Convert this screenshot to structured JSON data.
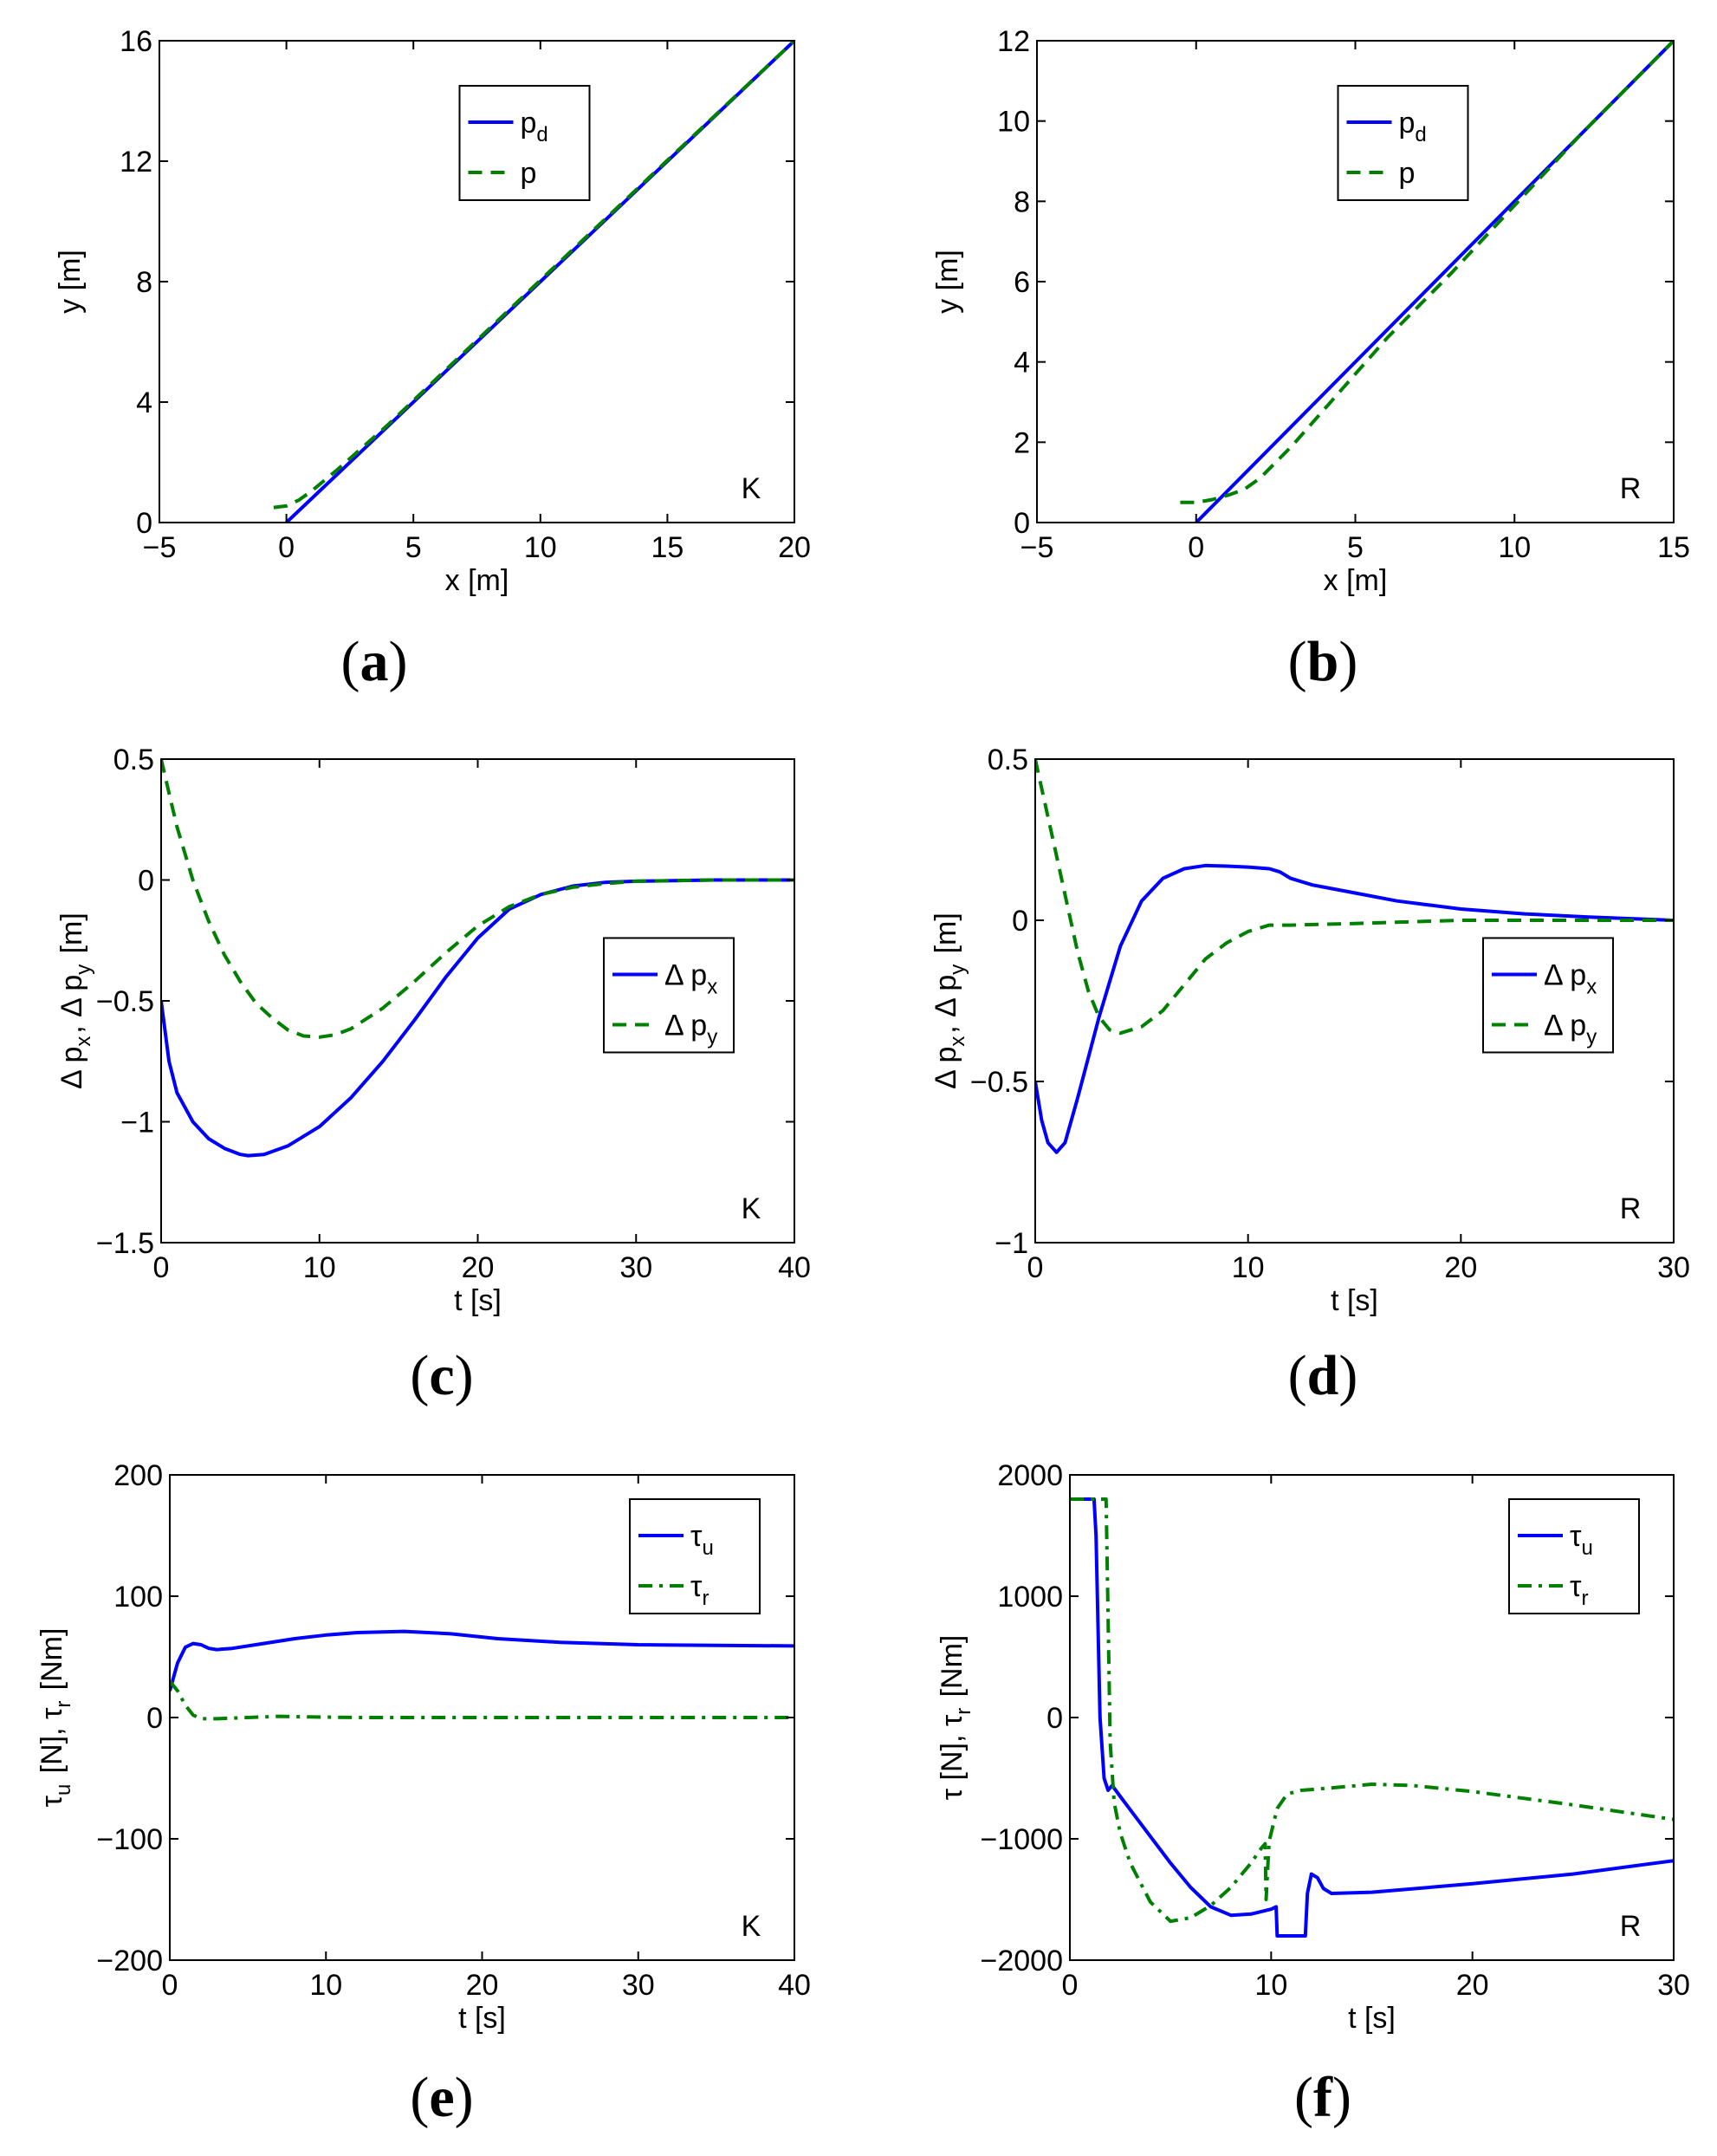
{
  "colors": {
    "blue": "#0000ff",
    "green": "#008000",
    "axis": "#000000"
  },
  "chart_data": [
    {
      "id": "a",
      "type": "line",
      "caption": "a",
      "corner_label": "K",
      "xlabel": "x [m]",
      "ylabel": "y [m]",
      "xlim": [
        -5,
        20
      ],
      "ylim": [
        0,
        16
      ],
      "xticks": [
        -5,
        0,
        5,
        10,
        15,
        20
      ],
      "yticks": [
        0,
        4,
        8,
        12,
        16
      ],
      "legend": {
        "position": "top-center"
      },
      "series": [
        {
          "name": "p",
          "sub": "d",
          "style": "solid",
          "color": "blue",
          "points": [
            [
              0,
              0
            ],
            [
              20,
              16
            ]
          ]
        },
        {
          "name": "p",
          "sub": "",
          "style": "dashed",
          "color": "green",
          "points": [
            [
              -0.5,
              0.5
            ],
            [
              0,
              0.55
            ],
            [
              0.5,
              0.75
            ],
            [
              1,
              1.05
            ],
            [
              2,
              1.75
            ],
            [
              3,
              2.5
            ],
            [
              4,
              3.25
            ],
            [
              5,
              4.05
            ],
            [
              7,
              5.65
            ],
            [
              10,
              8.05
            ],
            [
              15,
              12.03
            ],
            [
              20,
              16
            ]
          ]
        }
      ]
    },
    {
      "id": "b",
      "type": "line",
      "caption": "b",
      "corner_label": "R",
      "xlabel": "x [m]",
      "ylabel": "y [m]",
      "xlim": [
        -5,
        15
      ],
      "ylim": [
        0,
        12
      ],
      "xticks": [
        -5,
        0,
        5,
        10,
        15
      ],
      "yticks": [
        0,
        2,
        4,
        6,
        8,
        10,
        12
      ],
      "legend": {
        "position": "top-center"
      },
      "series": [
        {
          "name": "p",
          "sub": "d",
          "style": "solid",
          "color": "blue",
          "points": [
            [
              0,
              0
            ],
            [
              15,
              12
            ]
          ]
        },
        {
          "name": "p",
          "sub": "",
          "style": "dashed",
          "color": "green",
          "points": [
            [
              -0.5,
              0.5
            ],
            [
              0,
              0.5
            ],
            [
              0.5,
              0.57
            ],
            [
              1,
              0.68
            ],
            [
              1.5,
              0.82
            ],
            [
              2,
              1.1
            ],
            [
              3,
              1.9
            ],
            [
              4,
              2.8
            ],
            [
              5,
              3.7
            ],
            [
              6,
              4.6
            ],
            [
              7,
              5.4
            ],
            [
              8,
              6.2
            ],
            [
              10,
              7.9
            ],
            [
              12,
              9.6
            ],
            [
              15,
              12
            ]
          ]
        }
      ]
    },
    {
      "id": "c",
      "type": "line",
      "caption": "c",
      "corner_label": "K",
      "xlabel": "t [s]",
      "ylabel": "Δ p_x, Δ p_y [m]",
      "xlim": [
        0,
        40
      ],
      "ylim": [
        -1.5,
        0.5
      ],
      "xticks": [
        0,
        10,
        20,
        30,
        40
      ],
      "yticks": [
        -1.5,
        -1,
        -0.5,
        0,
        0.5
      ],
      "legend": {
        "position": "right-middle"
      },
      "series": [
        {
          "name": "Δ p",
          "sub": "x",
          "style": "solid",
          "color": "blue",
          "points": [
            [
              0,
              -0.5
            ],
            [
              0.5,
              -0.75
            ],
            [
              1,
              -0.88
            ],
            [
              2,
              -1.0
            ],
            [
              3,
              -1.07
            ],
            [
              4,
              -1.11
            ],
            [
              5,
              -1.135
            ],
            [
              5.5,
              -1.14
            ],
            [
              6.5,
              -1.135
            ],
            [
              8,
              -1.1
            ],
            [
              10,
              -1.02
            ],
            [
              12,
              -0.9
            ],
            [
              14,
              -0.75
            ],
            [
              16,
              -0.58
            ],
            [
              18,
              -0.4
            ],
            [
              20,
              -0.24
            ],
            [
              22,
              -0.12
            ],
            [
              24,
              -0.06
            ],
            [
              26,
              -0.025
            ],
            [
              28,
              -0.01
            ],
            [
              30,
              -0.005
            ],
            [
              35,
              0
            ],
            [
              40,
              0
            ]
          ]
        },
        {
          "name": "Δ p",
          "sub": "y",
          "style": "dashed",
          "color": "green",
          "points": [
            [
              0,
              0.5
            ],
            [
              0.5,
              0.36
            ],
            [
              1,
              0.22
            ],
            [
              2,
              0.0
            ],
            [
              3,
              -0.17
            ],
            [
              4,
              -0.31
            ],
            [
              5,
              -0.42
            ],
            [
              6,
              -0.51
            ],
            [
              7,
              -0.57
            ],
            [
              8,
              -0.62
            ],
            [
              9,
              -0.645
            ],
            [
              10,
              -0.65
            ],
            [
              11,
              -0.64
            ],
            [
              12,
              -0.615
            ],
            [
              14,
              -0.53
            ],
            [
              16,
              -0.42
            ],
            [
              18,
              -0.3
            ],
            [
              20,
              -0.19
            ],
            [
              22,
              -0.11
            ],
            [
              24,
              -0.06
            ],
            [
              26,
              -0.03
            ],
            [
              28,
              -0.015
            ],
            [
              30,
              -0.005
            ],
            [
              35,
              0
            ],
            [
              40,
              0
            ]
          ]
        }
      ]
    },
    {
      "id": "d",
      "type": "line",
      "caption": "d",
      "corner_label": "R",
      "xlabel": "t [s]",
      "ylabel": "Δ p_x, Δ p_y [m]",
      "xlim": [
        0,
        30
      ],
      "ylim": [
        -1,
        0.5
      ],
      "xticks": [
        0,
        10,
        20,
        30
      ],
      "yticks": [
        -1,
        -0.5,
        0,
        0.5
      ],
      "legend": {
        "position": "right-middle"
      },
      "series": [
        {
          "name": "Δ p",
          "sub": "x",
          "style": "solid",
          "color": "blue",
          "points": [
            [
              0,
              -0.5
            ],
            [
              0.3,
              -0.62
            ],
            [
              0.6,
              -0.69
            ],
            [
              1,
              -0.72
            ],
            [
              1.4,
              -0.69
            ],
            [
              2,
              -0.55
            ],
            [
              3,
              -0.3
            ],
            [
              4,
              -0.08
            ],
            [
              5,
              0.06
            ],
            [
              6,
              0.13
            ],
            [
              7,
              0.16
            ],
            [
              8,
              0.17
            ],
            [
              9,
              0.168
            ],
            [
              10,
              0.165
            ],
            [
              11,
              0.16
            ],
            [
              11.5,
              0.15
            ],
            [
              12,
              0.13
            ],
            [
              13,
              0.11
            ],
            [
              15,
              0.085
            ],
            [
              17,
              0.06
            ],
            [
              20,
              0.035
            ],
            [
              23,
              0.02
            ],
            [
              26,
              0.01
            ],
            [
              30,
              0.0
            ]
          ]
        },
        {
          "name": "Δ p",
          "sub": "y",
          "style": "dashed",
          "color": "green",
          "points": [
            [
              0,
              0.5
            ],
            [
              0.5,
              0.35
            ],
            [
              1,
              0.2
            ],
            [
              1.5,
              0.05
            ],
            [
              2,
              -0.1
            ],
            [
              2.5,
              -0.22
            ],
            [
              3,
              -0.3
            ],
            [
              3.5,
              -0.34
            ],
            [
              4,
              -0.35
            ],
            [
              5,
              -0.33
            ],
            [
              6,
              -0.28
            ],
            [
              7,
              -0.2
            ],
            [
              8,
              -0.12
            ],
            [
              9,
              -0.07
            ],
            [
              10,
              -0.035
            ],
            [
              11,
              -0.015
            ],
            [
              12,
              -0.015
            ],
            [
              15,
              -0.01
            ],
            [
              20,
              0.0
            ],
            [
              25,
              0.0
            ],
            [
              30,
              0.0
            ]
          ]
        }
      ]
    },
    {
      "id": "e",
      "type": "line",
      "caption": "e",
      "corner_label": "K",
      "xlabel": "t [s]",
      "ylabel": "τ_u [N], τ_r [Nm]",
      "xlim": [
        0,
        40
      ],
      "ylim": [
        -200,
        200
      ],
      "xticks": [
        0,
        10,
        20,
        30,
        40
      ],
      "yticks": [
        -200,
        -100,
        0,
        100,
        200
      ],
      "legend": {
        "position": "top-right"
      },
      "series": [
        {
          "name": "τ",
          "sub": "u",
          "style": "solid",
          "color": "blue",
          "points": [
            [
              0,
              22
            ],
            [
              0.5,
              45
            ],
            [
              1,
              58
            ],
            [
              1.5,
              61
            ],
            [
              2,
              60
            ],
            [
              2.5,
              57
            ],
            [
              3,
              56
            ],
            [
              4,
              57
            ],
            [
              6,
              61
            ],
            [
              8,
              65
            ],
            [
              10,
              68
            ],
            [
              12,
              70
            ],
            [
              15,
              71
            ],
            [
              18,
              69
            ],
            [
              21,
              65
            ],
            [
              25,
              62
            ],
            [
              30,
              60
            ],
            [
              35,
              59.5
            ],
            [
              40,
              59
            ]
          ]
        },
        {
          "name": "τ",
          "sub": "r",
          "style": "dashdot",
          "color": "green",
          "points": [
            [
              0,
              30
            ],
            [
              0.5,
              22
            ],
            [
              1,
              10
            ],
            [
              1.5,
              2
            ],
            [
              2,
              -1
            ],
            [
              3,
              -1
            ],
            [
              5,
              0
            ],
            [
              7,
              1
            ],
            [
              9,
              0.5
            ],
            [
              12,
              0
            ],
            [
              20,
              0
            ],
            [
              30,
              0
            ],
            [
              40,
              0
            ]
          ]
        }
      ]
    },
    {
      "id": "f",
      "type": "line",
      "caption": "f",
      "corner_label": "R",
      "xlabel": "t [s]",
      "ylabel": "τ [N], τ_r [Nm]",
      "xlim": [
        0,
        30
      ],
      "ylim": [
        -2000,
        2000
      ],
      "xticks": [
        0,
        10,
        20,
        30
      ],
      "yticks": [
        -2000,
        -1000,
        0,
        1000,
        2000
      ],
      "legend": {
        "position": "top-right"
      },
      "series": [
        {
          "name": "τ",
          "sub": "u",
          "style": "solid",
          "color": "blue",
          "points": [
            [
              0,
              1800
            ],
            [
              1.2,
              1800
            ],
            [
              1.3,
              1500
            ],
            [
              1.5,
              0
            ],
            [
              1.7,
              -500
            ],
            [
              1.9,
              -600
            ],
            [
              2.1,
              -560
            ],
            [
              2.5,
              -650
            ],
            [
              3,
              -760
            ],
            [
              4,
              -980
            ],
            [
              5,
              -1200
            ],
            [
              6,
              -1400
            ],
            [
              7,
              -1560
            ],
            [
              8,
              -1630
            ],
            [
              9,
              -1620
            ],
            [
              10,
              -1580
            ],
            [
              10.25,
              -1560
            ],
            [
              10.3,
              -1800
            ],
            [
              11.7,
              -1800
            ],
            [
              11.8,
              -1450
            ],
            [
              12,
              -1290
            ],
            [
              12.3,
              -1320
            ],
            [
              12.6,
              -1410
            ],
            [
              13,
              -1450
            ],
            [
              15,
              -1440
            ],
            [
              20,
              -1370
            ],
            [
              25,
              -1290
            ],
            [
              30,
              -1180
            ]
          ]
        },
        {
          "name": "τ",
          "sub": "r",
          "style": "dashdot",
          "color": "green",
          "points": [
            [
              0,
              1800
            ],
            [
              1.5,
              1800
            ],
            [
              1.8,
              1800
            ],
            [
              1.85,
              1300
            ],
            [
              2,
              -200
            ],
            [
              2.2,
              -700
            ],
            [
              2.5,
              -950
            ],
            [
              3,
              -1200
            ],
            [
              4,
              -1520
            ],
            [
              5,
              -1680
            ],
            [
              6,
              -1650
            ],
            [
              7,
              -1550
            ],
            [
              8,
              -1400
            ],
            [
              9,
              -1200
            ],
            [
              9.5,
              -1080
            ],
            [
              9.7,
              -1040
            ],
            [
              9.75,
              -1500
            ],
            [
              9.9,
              -1020
            ],
            [
              10.3,
              -750
            ],
            [
              10.8,
              -630
            ],
            [
              11.5,
              -600
            ],
            [
              13,
              -580
            ],
            [
              15,
              -550
            ],
            [
              17,
              -560
            ],
            [
              20,
              -610
            ],
            [
              25,
              -720
            ],
            [
              30,
              -840
            ]
          ]
        }
      ]
    }
  ]
}
